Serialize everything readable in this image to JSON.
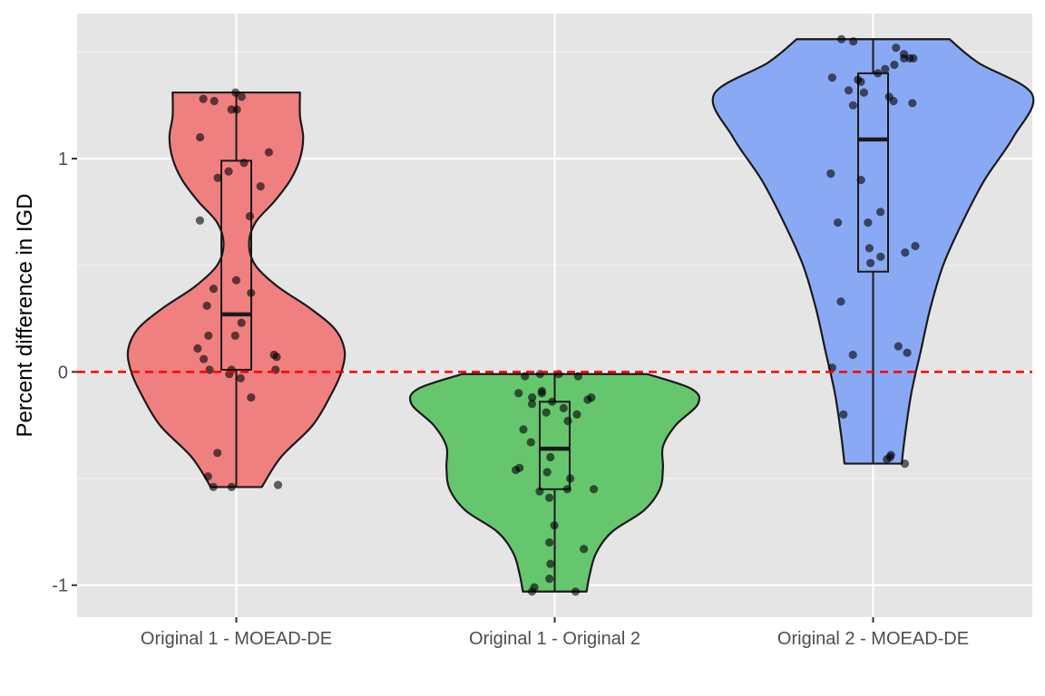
{
  "chart_data": {
    "type": "violin",
    "title": "",
    "xlabel": "",
    "ylabel": "Percent difference in IGD",
    "ylim": [
      -1.15,
      1.68
    ],
    "y_ticks": [
      -1,
      0,
      1
    ],
    "y_tick_labels": [
      "-1",
      "0",
      "1"
    ],
    "reference_line": {
      "y": 0,
      "color": "#ff0000",
      "style": "dashed"
    },
    "grid": true,
    "background": "#e5e5e5",
    "categories": [
      "Original 1 - MOEAD-DE",
      "Original 1 - Original 2",
      "Original 2 - MOEAD-DE"
    ],
    "series": [
      {
        "color": "#f08080",
        "violin": {
          "y": [
            -0.54,
            -0.4,
            -0.25,
            -0.1,
            0.0,
            0.1,
            0.2,
            0.3,
            0.4,
            0.5,
            0.6,
            0.7,
            0.8,
            0.9,
            1.0,
            1.1,
            1.2,
            1.31
          ],
          "half_width": [
            0.08,
            0.14,
            0.24,
            0.3,
            0.33,
            0.34,
            0.31,
            0.23,
            0.13,
            0.06,
            0.04,
            0.06,
            0.12,
            0.17,
            0.2,
            0.21,
            0.2,
            0.2
          ]
        },
        "box": {
          "q1": 0.01,
          "median": 0.27,
          "q3": 0.99,
          "min": -0.54,
          "max": 1.31
        },
        "points": [
          1.31,
          1.29,
          1.28,
          1.27,
          1.23,
          1.23,
          1.1,
          1.03,
          0.98,
          0.94,
          0.91,
          0.87,
          0.73,
          0.71,
          0.43,
          0.39,
          0.37,
          0.31,
          0.23,
          0.17,
          0.17,
          0.11,
          0.08,
          0.07,
          0.06,
          0.01,
          0.01,
          0.01,
          -0.01,
          -0.03,
          -0.12,
          -0.38,
          -0.49,
          -0.53,
          -0.54,
          -0.54
        ]
      },
      {
        "color": "#66c66e",
        "violin": {
          "y": [
            -1.03,
            -0.95,
            -0.85,
            -0.75,
            -0.65,
            -0.55,
            -0.45,
            -0.35,
            -0.25,
            -0.15,
            -0.08,
            -0.01
          ],
          "half_width": [
            0.1,
            0.11,
            0.13,
            0.18,
            0.28,
            0.33,
            0.34,
            0.34,
            0.38,
            0.45,
            0.43,
            0.29
          ]
        },
        "box": {
          "q1": -0.55,
          "median": -0.36,
          "q3": -0.14,
          "min": -1.03,
          "max": -0.01
        },
        "points": [
          -0.01,
          -0.01,
          -0.02,
          -0.02,
          -0.09,
          -0.1,
          -0.1,
          -0.12,
          -0.12,
          -0.13,
          -0.14,
          -0.15,
          -0.17,
          -0.19,
          -0.2,
          -0.23,
          -0.27,
          -0.33,
          -0.4,
          -0.45,
          -0.46,
          -0.47,
          -0.5,
          -0.55,
          -0.55,
          -0.56,
          -0.59,
          -0.72,
          -0.8,
          -0.83,
          -0.9,
          -0.97,
          -1.01,
          -1.03,
          -1.03
        ]
      },
      {
        "color": "#8aa9f5",
        "violin": {
          "y": [
            -0.43,
            -0.3,
            -0.1,
            0.1,
            0.3,
            0.5,
            0.7,
            0.9,
            1.1,
            1.3,
            1.45,
            1.56
          ],
          "half_width": [
            0.09,
            0.1,
            0.12,
            0.15,
            0.18,
            0.22,
            0.28,
            0.35,
            0.44,
            0.5,
            0.33,
            0.24
          ]
        },
        "box": {
          "q1": 0.47,
          "median": 1.09,
          "q3": 1.4,
          "min": -0.43,
          "max": 1.56
        },
        "points": [
          1.56,
          1.55,
          1.52,
          1.49,
          1.47,
          1.47,
          1.47,
          1.44,
          1.42,
          1.4,
          1.38,
          1.37,
          1.36,
          1.32,
          1.31,
          1.29,
          1.27,
          1.25,
          1.26,
          0.93,
          0.9,
          0.75,
          0.7,
          0.7,
          0.59,
          0.58,
          0.56,
          0.54,
          0.51,
          0.33,
          0.12,
          0.09,
          0.08,
          0.02,
          -0.2,
          -0.39,
          -0.4,
          -0.41,
          -0.43
        ]
      }
    ]
  }
}
